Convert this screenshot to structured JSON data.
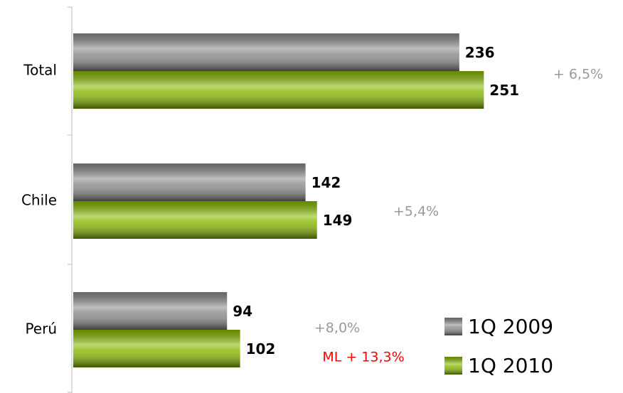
{
  "chart_data": {
    "type": "bar",
    "orientation": "horizontal",
    "categories": [
      "Total",
      "Chile",
      "Perú"
    ],
    "series": [
      {
        "name": "1Q 2009",
        "color": "#8a8a8a",
        "values": [
          236,
          142,
          94
        ]
      },
      {
        "name": "1Q 2010",
        "color": "#86b800",
        "values": [
          251,
          149,
          102
        ]
      }
    ],
    "annotations": [
      {
        "text": "+ 6,5%",
        "color": "#999999"
      },
      {
        "text": "+5,4%",
        "color": "#999999"
      },
      {
        "text": "+8,0%",
        "color": "#999999"
      },
      {
        "text": "ML + 13,3%",
        "color": "#ff0000"
      }
    ],
    "legend": "bottom-right"
  }
}
